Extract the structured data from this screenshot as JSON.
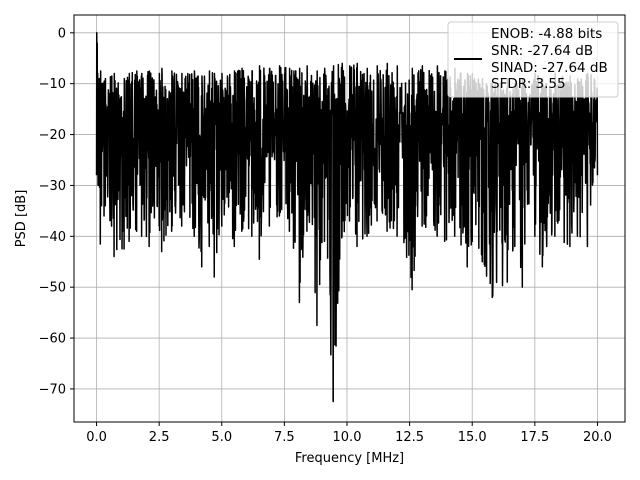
{
  "chart_data": {
    "type": "line",
    "title": "",
    "xlabel": "Frequency [MHz]",
    "ylabel": "PSD [dB]",
    "xlim": [
      -0.9,
      21.1
    ],
    "ylim": [
      -76.5,
      3.5
    ],
    "x_ticks": [
      0.0,
      2.5,
      5.0,
      7.5,
      10.0,
      12.5,
      15.0,
      17.5,
      20.0
    ],
    "x_tick_labels": [
      "0.0",
      "2.5",
      "5.0",
      "7.5",
      "10.0",
      "12.5",
      "15.0",
      "17.5",
      "20.0"
    ],
    "y_ticks": [
      0,
      -10,
      -20,
      -30,
      -40,
      -50,
      -60,
      -70
    ],
    "y_tick_labels": [
      "0",
      "−10",
      "−20",
      "−30",
      "−40",
      "−50",
      "−60",
      "−70"
    ],
    "grid": true,
    "legend_position": "top-right",
    "legend": {
      "lines": [
        "ENOB: -4.88 bits",
        "SNR: -27.64 dB",
        "SINAD: -27.64 dB",
        "SFDR: 3.55"
      ]
    },
    "series": [
      {
        "color": "#000000",
        "x": [
          0.0,
          0.02,
          0.04,
          0.06,
          0.1,
          0.15,
          0.2,
          0.3,
          0.35,
          0.6,
          0.7,
          1.1,
          1.3,
          1.6,
          1.8,
          2.1,
          2.5,
          2.6,
          3.0,
          3.4,
          3.9,
          4.2,
          4.5,
          4.7,
          5.0,
          5.5,
          5.8,
          6.2,
          6.5,
          6.9,
          7.3,
          7.7,
          8.1,
          8.4,
          8.8,
          9.1,
          9.45,
          9.8,
          10.1,
          10.4,
          10.8,
          11.2,
          11.6,
          12.0,
          12.6,
          13.0,
          13.6,
          13.9,
          14.3,
          14.8,
          15.0,
          15.4,
          15.8,
          16.4,
          16.7,
          17.0,
          17.5,
          17.8,
          18.3,
          18.9,
          19.2,
          19.6,
          20.0
        ],
        "upper": [
          0.0,
          -2.0,
          -8.0,
          -10.0,
          -9.0,
          -7.5,
          -10.0,
          -9.5,
          -9.0,
          -8.5,
          -8.0,
          -9.0,
          -8.0,
          -7.5,
          -8.0,
          -7.5,
          -8.0,
          -7.0,
          -7.5,
          -8.0,
          -7.5,
          -8.5,
          -7.5,
          -8.0,
          -8.0,
          -7.5,
          -7.0,
          -7.5,
          -6.5,
          -7.0,
          -6.5,
          -7.0,
          -7.0,
          -6.5,
          -7.5,
          -7.0,
          -6.5,
          -6.0,
          -6.5,
          -6.0,
          -7.0,
          -6.5,
          -6.0,
          -6.5,
          -7.0,
          -6.5,
          -6.5,
          -7.5,
          -7.0,
          -8.0,
          -8.0,
          -9.0,
          -10.0,
          -9.0,
          -10.0,
          -9.0,
          -8.0,
          -9.0,
          -8.0,
          -8.5,
          -9.0,
          -8.0,
          -8.5
        ],
        "lower": [
          -28.0,
          -20.0,
          -27.0,
          -30.0,
          -28.0,
          -41.5,
          -34.0,
          -36.0,
          -34.0,
          -38.0,
          -44.0,
          -42.5,
          -41.0,
          -39.0,
          -40.0,
          -42.0,
          -38.0,
          -43.0,
          -39.0,
          -38.0,
          -40.0,
          -46.0,
          -42.0,
          -48.0,
          -38.0,
          -42.0,
          -39.0,
          -40.0,
          -44.5,
          -38.0,
          -36.0,
          -39.0,
          -53.0,
          -39.0,
          -57.5,
          -41.0,
          -72.5,
          -40.0,
          -37.0,
          -42.0,
          -40.0,
          -37.0,
          -39.0,
          -40.0,
          -50.5,
          -38.0,
          -40.0,
          -41.0,
          -40.0,
          -46.0,
          -41.0,
          -45.0,
          -52.0,
          -49.0,
          -42.0,
          -50.0,
          -40.0,
          -46.0,
          -40.0,
          -42.0,
          -40.0,
          -42.0,
          -28.0
        ],
        "mean_level": -20.0
      }
    ]
  }
}
